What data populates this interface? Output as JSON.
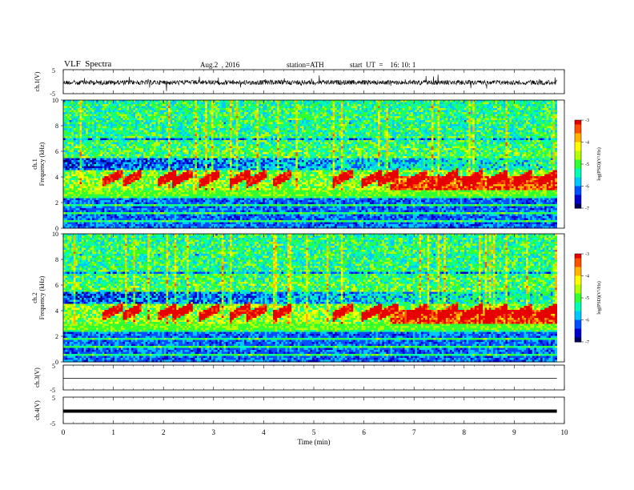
{
  "header": {
    "title": "VLF  Spectra",
    "date": "Aug.2  , 2016",
    "station": "station=ATH",
    "start": "start  UT  =    16: 10: 1"
  },
  "chart_data": [
    {
      "type": "line",
      "ylabel": "ch.1(V)",
      "ylim": [
        -5,
        5
      ],
      "yticks": [
        "5",
        "-5"
      ],
      "description_values": {
        "baseline": 0.5,
        "noise_amplitude": 1.5
      }
    },
    {
      "type": "heatmap",
      "ylabel": "Frequency  (kHz)",
      "channel_label": "ch.1",
      "ylim": [
        0,
        10
      ],
      "yticks": [
        "0",
        "2",
        "4",
        "6",
        "8",
        "10"
      ],
      "colorbar": {
        "ticks": [
          "-3",
          "-4",
          "-5",
          "-6",
          "-7"
        ],
        "label": "log(PSD)(V²/Hz)",
        "range": [
          -7,
          -3
        ]
      }
    },
    {
      "type": "heatmap",
      "ylabel": "Frequency  (kHz)",
      "channel_label": "ch.2",
      "ylim": [
        0,
        10
      ],
      "yticks": [
        "0",
        "2",
        "4",
        "6",
        "8",
        "10"
      ],
      "colorbar": {
        "ticks": [
          "-3",
          "-4",
          "-5",
          "-6",
          "-7"
        ],
        "label": "log(PSD)(V²/Hz)",
        "range": [
          -7,
          -3
        ]
      }
    },
    {
      "type": "line",
      "ylabel": "ch.3(V)",
      "ylim": [
        -5,
        5
      ],
      "yticks": [
        "5",
        "-5"
      ]
    },
    {
      "type": "line",
      "ylabel": "ch.4(V)",
      "ylim": [
        -5,
        5
      ],
      "yticks": [
        "5",
        "-5"
      ]
    }
  ],
  "xaxis": {
    "label": "Time  (min)",
    "xlim": [
      0,
      10
    ],
    "ticks": [
      "0",
      "1",
      "2",
      "3",
      "4",
      "5",
      "6",
      "7",
      "8",
      "9",
      "10"
    ],
    "data_end": 9.85
  },
  "colors": {
    "scale": [
      "#00005a",
      "#0000c8",
      "#0050ff",
      "#00c8ff",
      "#00ffb4",
      "#32ff32",
      "#b4ff00",
      "#ffff00",
      "#ffb400",
      "#ff5000",
      "#e60000"
    ]
  }
}
